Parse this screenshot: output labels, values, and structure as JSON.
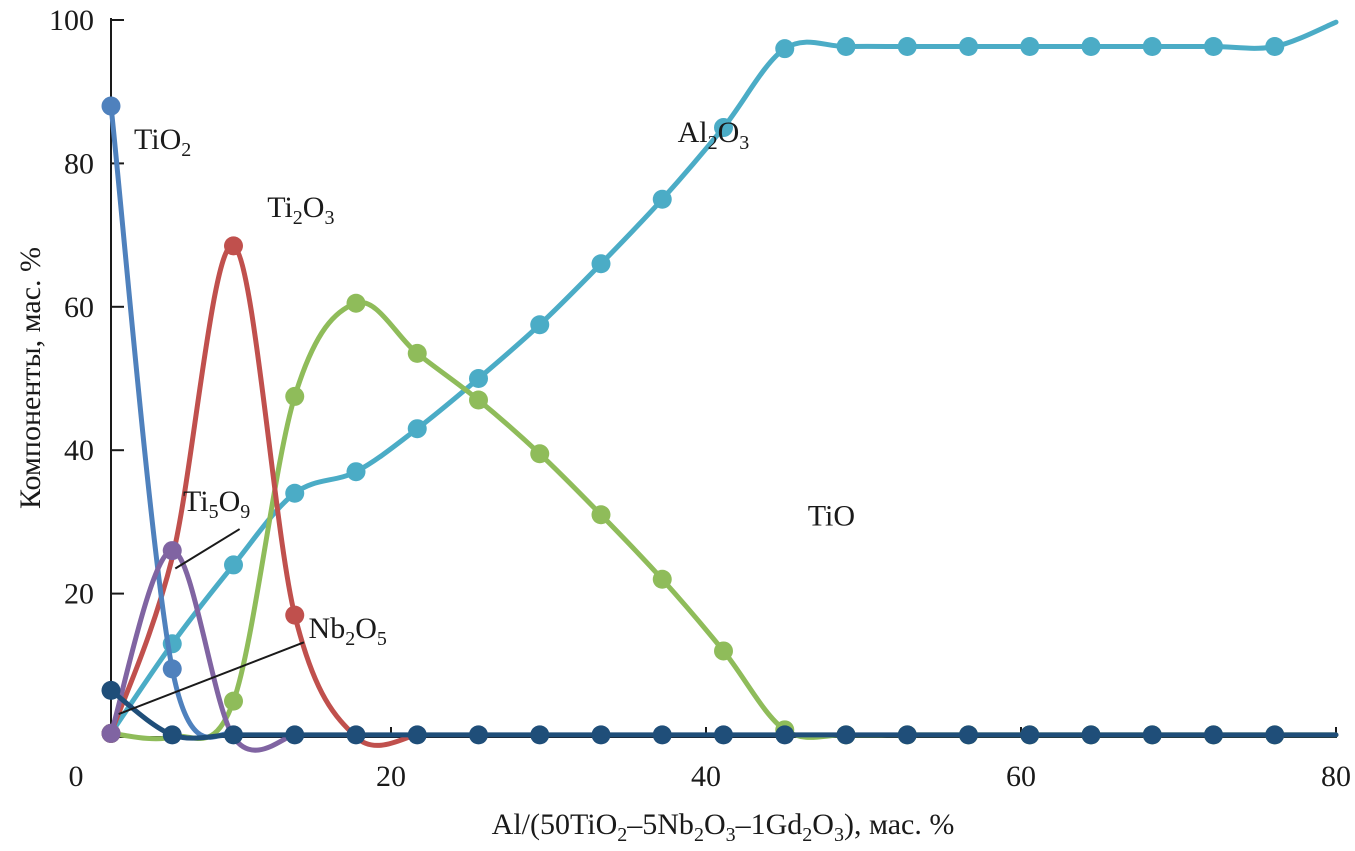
{
  "chart_data": {
    "type": "line",
    "xlabel": {
      "parts": [
        {
          "t": "Al/(50TiO"
        },
        {
          "t": "2",
          "sub": true
        },
        {
          "t": "–5Nb"
        },
        {
          "t": "2",
          "sub": true
        },
        {
          "t": "O"
        },
        {
          "t": "3",
          "sub": true
        },
        {
          "t": "–1Gd"
        },
        {
          "t": "2",
          "sub": true
        },
        {
          "t": "O"
        },
        {
          "t": "3",
          "sub": true
        },
        {
          "t": "), мас. %"
        }
      ]
    },
    "ylabel": "Компоненты, мас. %",
    "xlim": [
      0,
      80
    ],
    "ylim": [
      0,
      100
    ],
    "x_ticks": [
      "0",
      "20",
      "40",
      "60",
      "80"
    ],
    "y_ticks": [
      "20",
      "40",
      "60",
      "80",
      "100"
    ],
    "grid": false,
    "series": [
      {
        "name": "Al2O3",
        "label_parts": [
          {
            "t": "Al"
          },
          {
            "t": "2",
            "sub": true
          },
          {
            "t": "O"
          },
          {
            "t": "3",
            "sub": true
          }
        ],
        "label_at": [
          39,
          83
        ],
        "color": "#4bacc6",
        "points": [
          [
            2,
            0.5
          ],
          [
            6,
            13
          ],
          [
            10,
            24
          ],
          [
            14,
            34
          ],
          [
            18,
            37
          ],
          [
            22,
            43
          ],
          [
            26,
            50
          ],
          [
            30,
            57.5
          ],
          [
            34,
            66
          ],
          [
            38,
            75
          ],
          [
            42,
            85
          ],
          [
            46,
            96
          ],
          [
            50,
            96.3
          ],
          [
            54,
            96.3
          ],
          [
            58,
            96.3
          ],
          [
            62,
            96.3
          ],
          [
            66,
            96.3
          ],
          [
            70,
            96.3
          ],
          [
            74,
            96.3
          ],
          [
            78,
            96.3
          ]
        ],
        "curve": [
          [
            2,
            0.5
          ],
          [
            6,
            13
          ],
          [
            10,
            24
          ],
          [
            14,
            34
          ],
          [
            18,
            37
          ],
          [
            22,
            43
          ],
          [
            26,
            50
          ],
          [
            30,
            57.5
          ],
          [
            34,
            66
          ],
          [
            38,
            75
          ],
          [
            42,
            85
          ],
          [
            46,
            96
          ],
          [
            50,
            96.3
          ],
          [
            54,
            96.3
          ],
          [
            58,
            96.3
          ],
          [
            62,
            96.3
          ],
          [
            66,
            96.3
          ],
          [
            70,
            96.3
          ],
          [
            74,
            96.3
          ],
          [
            78,
            96.3
          ],
          [
            82,
            99.7
          ]
        ]
      },
      {
        "name": "TiO",
        "label_parts": [
          {
            "t": "TiO"
          }
        ],
        "label_at": [
          47.5,
          29.5
        ],
        "color": "#8fbc5a",
        "points": [
          [
            2,
            0.5
          ],
          [
            10,
            5
          ],
          [
            14,
            47.5
          ],
          [
            18,
            60.5
          ],
          [
            22,
            53.5
          ],
          [
            26,
            47
          ],
          [
            30,
            39.5
          ],
          [
            34,
            31
          ],
          [
            38,
            22
          ],
          [
            42,
            12
          ],
          [
            46,
            1
          ],
          [
            50,
            0.3
          ],
          [
            54,
            0.3
          ],
          [
            58,
            0.3
          ],
          [
            62,
            0.3
          ],
          [
            66,
            0.3
          ],
          [
            70,
            0.3
          ],
          [
            74,
            0.3
          ],
          [
            78,
            0.3
          ]
        ],
        "curve": [
          [
            2,
            0.5
          ],
          [
            6,
            0
          ],
          [
            10,
            5
          ],
          [
            14,
            47.5
          ],
          [
            18,
            60.5
          ],
          [
            22,
            53.5
          ],
          [
            26,
            47
          ],
          [
            30,
            39.5
          ],
          [
            34,
            31
          ],
          [
            38,
            22
          ],
          [
            42,
            12
          ],
          [
            46,
            1
          ],
          [
            50,
            0.3
          ],
          [
            54,
            0.3
          ],
          [
            58,
            0.3
          ],
          [
            62,
            0.3
          ],
          [
            66,
            0.3
          ],
          [
            70,
            0.3
          ],
          [
            74,
            0.3
          ],
          [
            78,
            0.3
          ],
          [
            82,
            0.3
          ]
        ]
      },
      {
        "name": "Ti2O3",
        "label_parts": [
          {
            "t": "Ti"
          },
          {
            "t": "2",
            "sub": true
          },
          {
            "t": "O"
          },
          {
            "t": "3",
            "sub": true
          }
        ],
        "label_at": [
          12.2,
          72.5
        ],
        "color": "#c0504d",
        "points": [
          [
            2,
            0.5
          ],
          [
            10,
            68.5
          ],
          [
            14,
            17
          ]
        ],
        "curve": [
          [
            2,
            0.5
          ],
          [
            6,
            25
          ],
          [
            10,
            68.5
          ],
          [
            14,
            17
          ],
          [
            18,
            0
          ],
          [
            22,
            0.3
          ]
        ]
      },
      {
        "name": "TiO2",
        "label_parts": [
          {
            "t": "TiO"
          },
          {
            "t": "2",
            "sub": true
          }
        ],
        "label_at": [
          3.5,
          82
        ],
        "color": "#4f81bd",
        "points": [
          [
            2,
            88
          ],
          [
            6,
            9.5
          ]
        ],
        "curve": [
          [
            2,
            88
          ],
          [
            6,
            9.5
          ],
          [
            10,
            0.3
          ]
        ]
      },
      {
        "name": "Ti5O9",
        "label_parts": [
          {
            "t": "Ti"
          },
          {
            "t": "5",
            "sub": true
          },
          {
            "t": "O"
          },
          {
            "t": "9",
            "sub": true
          }
        ],
        "label_at": [
          6.7,
          31.5
        ],
        "leader": [
          [
            10.4,
            29
          ],
          [
            6.2,
            23.5
          ]
        ],
        "color": "#8064a2",
        "points": [
          [
            2,
            0.5
          ],
          [
            6,
            26
          ]
        ],
        "curve": [
          [
            2,
            0.5
          ],
          [
            6,
            26
          ],
          [
            10,
            0
          ],
          [
            14,
            0.3
          ]
        ]
      },
      {
        "name": "Nb2O5",
        "label_parts": [
          {
            "t": "Nb"
          },
          {
            "t": "2",
            "sub": true
          },
          {
            "t": "O"
          },
          {
            "t": "5",
            "sub": true
          }
        ],
        "label_at": [
          14.9,
          13.8
        ],
        "leader": [
          [
            14.6,
            13.2
          ],
          [
            2.5,
            3.2
          ]
        ],
        "color": "#1f4e79",
        "points": [
          [
            2,
            6.5
          ],
          [
            6,
            0.3
          ],
          [
            10,
            0.3
          ],
          [
            14,
            0.3
          ],
          [
            18,
            0.3
          ],
          [
            22,
            0.3
          ],
          [
            26,
            0.3
          ],
          [
            30,
            0.3
          ],
          [
            34,
            0.3
          ],
          [
            38,
            0.3
          ],
          [
            42,
            0.3
          ],
          [
            46,
            0.3
          ],
          [
            50,
            0.3
          ],
          [
            54,
            0.3
          ],
          [
            58,
            0.3
          ],
          [
            62,
            0.3
          ],
          [
            66,
            0.3
          ],
          [
            70,
            0.3
          ],
          [
            74,
            0.3
          ],
          [
            78,
            0.3
          ]
        ],
        "curve": [
          [
            2,
            6.5
          ],
          [
            6,
            0.3
          ],
          [
            10,
            0.3
          ],
          [
            14,
            0.3
          ],
          [
            18,
            0.3
          ],
          [
            22,
            0.3
          ],
          [
            26,
            0.3
          ],
          [
            30,
            0.3
          ],
          [
            34,
            0.3
          ],
          [
            38,
            0.3
          ],
          [
            42,
            0.3
          ],
          [
            46,
            0.3
          ],
          [
            50,
            0.3
          ],
          [
            54,
            0.3
          ],
          [
            58,
            0.3
          ],
          [
            62,
            0.3
          ],
          [
            66,
            0.3
          ],
          [
            70,
            0.3
          ],
          [
            74,
            0.3
          ],
          [
            78,
            0.3
          ],
          [
            82,
            0.3
          ]
        ]
      }
    ]
  }
}
